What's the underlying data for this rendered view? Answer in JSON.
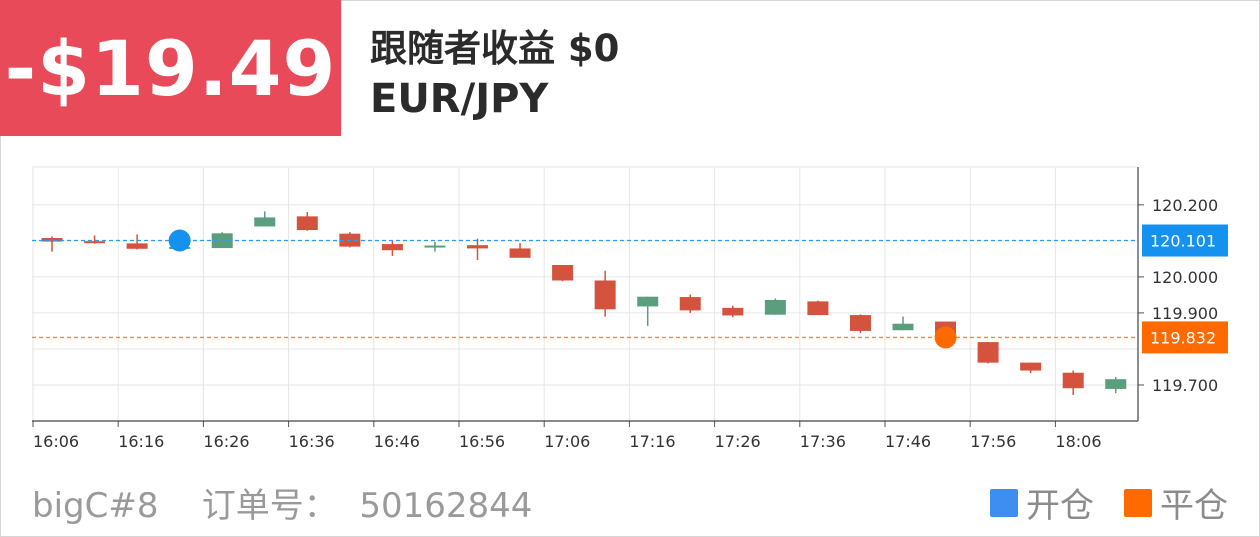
{
  "header": {
    "pnl": "-$19.49",
    "follower_profit": "跟随者收益 $0",
    "pair": "EUR/JPY"
  },
  "footer": {
    "account": "bigC#8",
    "order_label": "订单号：",
    "order_number": "50162844"
  },
  "legend": [
    {
      "label": "开仓",
      "color": "#3d8ef0"
    },
    {
      "label": "平仓",
      "color": "#ff6a00"
    }
  ],
  "colors": {
    "up": "#5a9e7e",
    "down": "#d3533f",
    "open_line": "#2f9bea",
    "close_line": "#f28b3b",
    "open_dot": "#1592f0",
    "close_dot": "#ff6a00"
  },
  "chart_data": {
    "type": "candlestick",
    "x_tick_labels": [
      "16:06",
      "16:16",
      "16:26",
      "16:36",
      "16:46",
      "16:56",
      "17:06",
      "17:16",
      "17:26",
      "17:36",
      "17:46",
      "17:56",
      "18:06"
    ],
    "y_tick_labels": [
      "120.200",
      "120.000",
      "119.900",
      "119.700"
    ],
    "ylim": [
      119.6,
      120.305
    ],
    "candles": [
      {
        "o": 120.108,
        "c": 120.098,
        "h": 120.112,
        "l": 120.07
      },
      {
        "o": 120.099,
        "c": 120.094,
        "h": 120.115,
        "l": 120.092
      },
      {
        "o": 120.093,
        "c": 120.078,
        "h": 120.118,
        "l": 120.076
      },
      {
        "o": 120.083,
        "c": 120.083,
        "h": 120.083,
        "l": 120.083
      },
      {
        "o": 120.08,
        "c": 120.121,
        "h": 120.124,
        "l": 120.08
      },
      {
        "o": 120.14,
        "c": 120.165,
        "h": 120.182,
        "l": 120.14
      },
      {
        "o": 120.168,
        "c": 120.13,
        "h": 120.18,
        "l": 120.128
      },
      {
        "o": 120.12,
        "c": 120.084,
        "h": 120.124,
        "l": 120.082
      },
      {
        "o": 120.091,
        "c": 120.074,
        "h": 120.099,
        "l": 120.058
      },
      {
        "o": 120.082,
        "c": 120.087,
        "h": 120.097,
        "l": 120.07
      },
      {
        "o": 120.088,
        "c": 120.079,
        "h": 120.106,
        "l": 120.047
      },
      {
        "o": 120.079,
        "c": 120.053,
        "h": 120.094,
        "l": 120.053
      },
      {
        "o": 120.033,
        "c": 119.99,
        "h": 120.033,
        "l": 119.988
      },
      {
        "o": 119.99,
        "c": 119.91,
        "h": 120.017,
        "l": 119.89
      },
      {
        "o": 119.918,
        "c": 119.945,
        "h": 119.945,
        "l": 119.864
      },
      {
        "o": 119.944,
        "c": 119.907,
        "h": 119.951,
        "l": 119.9
      },
      {
        "o": 119.914,
        "c": 119.893,
        "h": 119.92,
        "l": 119.888
      },
      {
        "o": 119.895,
        "c": 119.936,
        "h": 119.94,
        "l": 119.895
      },
      {
        "o": 119.932,
        "c": 119.894,
        "h": 119.934,
        "l": 119.894
      },
      {
        "o": 119.894,
        "c": 119.85,
        "h": 119.896,
        "l": 119.844
      },
      {
        "o": 119.852,
        "c": 119.87,
        "h": 119.89,
        "l": 119.852
      },
      {
        "o": 119.876,
        "c": 119.826,
        "h": 119.876,
        "l": 119.826
      },
      {
        "o": 119.819,
        "c": 119.762,
        "h": 119.819,
        "l": 119.76
      },
      {
        "o": 119.762,
        "c": 119.74,
        "h": 119.762,
        "l": 119.733
      },
      {
        "o": 119.734,
        "c": 119.691,
        "h": 119.74,
        "l": 119.672
      },
      {
        "o": 119.689,
        "c": 119.716,
        "h": 119.722,
        "l": 119.677
      }
    ],
    "open_price": "120.101",
    "close_price": "119.832",
    "open_marker_index": 3,
    "close_marker_index": 21
  }
}
